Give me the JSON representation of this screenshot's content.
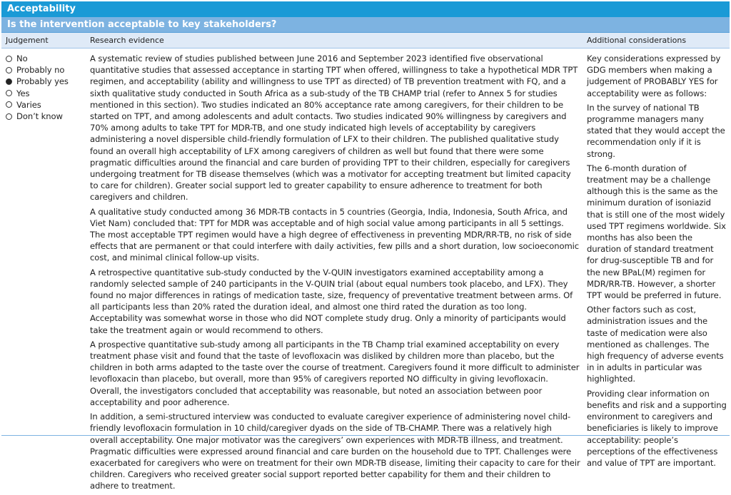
{
  "section_title": "Acceptability",
  "question": "Is the intervention acceptable to key stakeholders?",
  "columns": {
    "judgement": "Judgement",
    "research": "Research evidence",
    "additional": "Additional considerations"
  },
  "judgement_options": [
    {
      "label": "No",
      "selected": false
    },
    {
      "label": "Probably no",
      "selected": false
    },
    {
      "label": "Probably yes",
      "selected": true
    },
    {
      "label": "Yes",
      "selected": false
    },
    {
      "label": "Varies",
      "selected": false
    },
    {
      "label": "Don’t know",
      "selected": false
    }
  ],
  "research_evidence": [
    "A systematic review of studies published between June 2016 and September 2023 identified five observational quantitative studies that assessed acceptance in starting TPT when offered, willingness to take a hypothetical MDR TPT regimen, and acceptability (ability and willingness to use TPT as directed) of TB prevention treatment with FQ, and a sixth qualitative study conducted in South Africa as a sub-study of the TB CHAMP trial (refer to Annex 5 for studies mentioned in this section). Two studies indicated an 80% acceptance rate among caregivers, for their children to be started on TPT, and among adolescents and adult contacts. Two studies indicated 90% willingness by caregivers and 70% among adults to take TPT for MDR-TB, and one study indicated high levels of acceptability by caregivers administering a novel dispersible child-friendly formulation of LFX to their children. The published qualitative study found an overall high acceptability of LFX among caregivers of children as well but found that there were some pragmatic difficulties around the financial and care burden of providing TPT to their children, especially for caregivers undergoing treatment for TB disease themselves (which was a motivator for accepting treatment but limited capacity to care for children). Greater social support led to greater capability to ensure adherence to treatment for both caregivers and children.",
    "A qualitative study conducted among 36 MDR-TB contacts in 5 countries (Georgia, India, Indonesia, South Africa, and Viet Nam) concluded that: TPT for MDR was acceptable and of high social value among participants in all 5 settings. The most acceptable TPT regimen would have a high degree of effectiveness in preventing MDR/RR-TB, no risk of side effects that are permanent or that could interfere with daily activities, few pills and a short duration, low socioeconomic cost, and minimal clinical follow-up visits.",
    "A retrospective quantitative sub-study conducted by the V-QUIN investigators examined acceptability among a randomly selected sample of 240 participants in the V-QUIN trial (about equal numbers took placebo, and LFX). They found no major differences in ratings of medication taste, size, frequency of preventative treatment between arms. Of all participants less than 20% rated the duration ideal, and almost one third rated the duration as too long. Acceptability was somewhat worse in those who did NOT complete study drug. Only a minority of participants would take the treatment again or would recommend to others.",
    "A prospective quantitative sub-study among all participants in the TB Champ trial examined acceptability on every treatment phase visit and found that the taste of levofloxacin was disliked by children more than placebo, but the children in both arms adapted to the taste over the course of treatment. Caregivers found it more difficult to administer levofloxacin than placebo, but overall, more than 95% of caregivers reported NO difficulty in giving levofloxacin. Overall, the investigators concluded that acceptability was reasonable, but noted an association between poor acceptability and poor adherence.",
    "In addition, a semi-structured interview was conducted to evaluate caregiver experience of administering novel child-friendly levofloxacin formulation in 10 child/caregiver dyads on the side of TB-CHAMP. There was a relatively high overall acceptability. One major motivator was the caregivers’ own experiences with MDR-TB illness, and treatment. Pragmatic difficulties were expressed around financial and care burden on the household due to TPT. Challenges were exacerbated for caregivers who were on treatment for their own MDR-TB disease, limiting their capacity to care for their children. Caregivers who received greater social support reported better capability for them and their children to adhere to treatment."
  ],
  "additional_considerations": [
    "Key considerations expressed by GDG members when making a judgement of PROBABLY YES for acceptability were as follows:",
    "In the survey of national TB programme managers many stated that they would accept the recommendation only if it is strong.",
    "The 6-month duration of treatment may be a challenge although this is the same as the minimum duration of isoniazid that is still one of the most widely used TPT regimens worldwide. Six months has also been the duration of standard treatment for drug-susceptible TB and for the new BPaL(M) regimen for MDR/RR-TB. However, a shorter TPT would be preferred in future.",
    "Other factors such as cost, administration issues and the taste of medication were also mentioned as challenges. The high frequency of adverse events in in adults in particular was highlighted.",
    "Providing clear information on benefits and risk and a supporting environment to caregivers and beneficiaries is likely to improve acceptability: people’s perceptions of the effectiveness and value of TPT are important."
  ]
}
